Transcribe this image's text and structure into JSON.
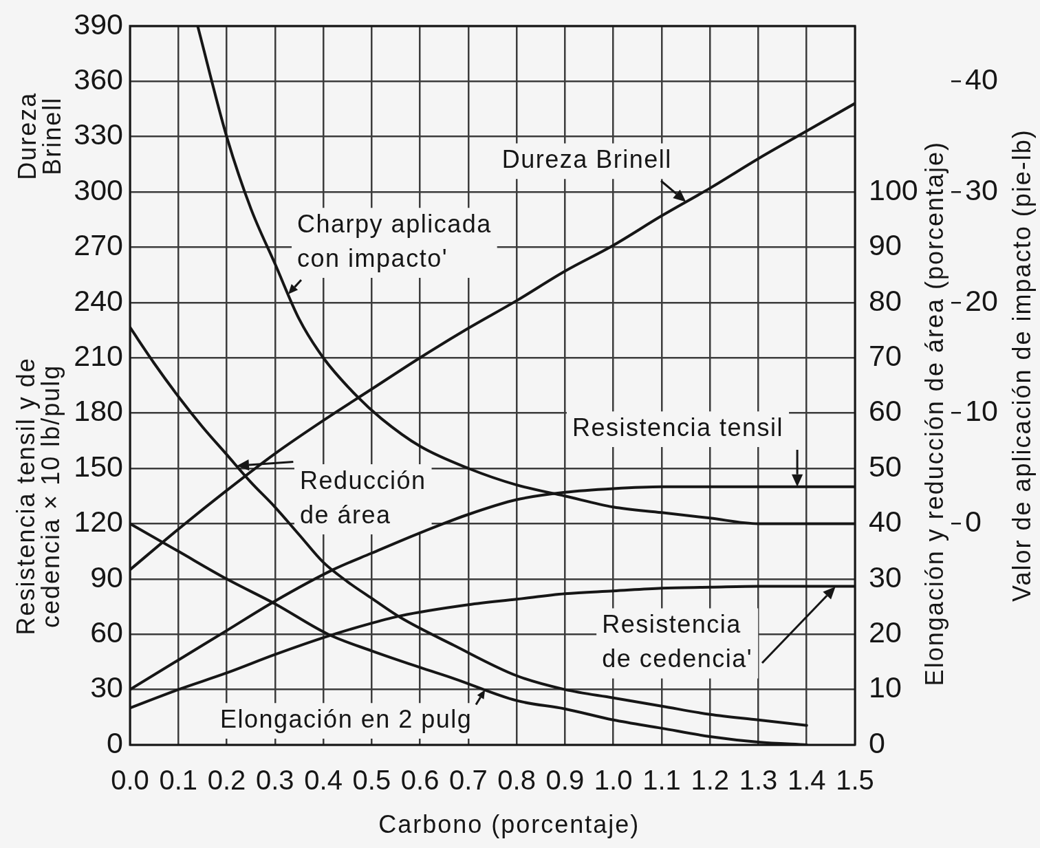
{
  "chart_data": {
    "type": "line",
    "xlabel": "Carbono (porcentaje)",
    "ylabel": "Resistencia tensil y de cedencia × 10 lb/pulg",
    "y2label": "Elongación y reducción de área (porcentaje)",
    "y3label": "Valor de aplicación de impacto (pie-lb)",
    "annotations": [
      "Dureza Brinell"
    ],
    "xlim": [
      0,
      1.5
    ],
    "xticks": [
      {
        "value": 0,
        "label": "0.0"
      },
      0.1,
      0.2,
      0.3,
      0.4,
      0.5,
      0.6,
      0.7,
      0.8,
      0.9,
      {
        "value": 1,
        "label": "1.0"
      },
      1.1,
      1.2,
      1.3,
      1.4,
      1.5
    ],
    "ylim": [
      0,
      390
    ],
    "yticks": [
      0,
      30,
      60,
      90,
      120,
      150,
      180,
      210,
      240,
      270,
      300,
      330,
      360,
      390
    ],
    "y2lim": [
      0,
      130
    ],
    "y2ticks": [
      0,
      10,
      20,
      30,
      40,
      50,
      60,
      70,
      80,
      90,
      100
    ],
    "y3lim": [
      -20,
      45
    ],
    "y3ticks": [
      0,
      10,
      20,
      30,
      40
    ],
    "grid": true,
    "series": [
      {
        "name": "Dureza Brinell",
        "color": "#161616",
        "x": [
          0,
          0.1,
          0.2,
          0.3,
          0.4,
          0.5,
          0.6,
          0.7,
          0.8,
          0.9,
          1.0,
          1.1,
          1.2,
          1.3,
          1.4,
          1.5
        ],
        "values": [
          95,
          117,
          138,
          158,
          176,
          193,
          210,
          226,
          241,
          257,
          271,
          287,
          302,
          318,
          333,
          348
        ]
      },
      {
        "name": "Charpy aplicada con impacto'",
        "color": "#161616",
        "axis": "y3",
        "x": [
          0.14,
          0.2,
          0.25,
          0.3,
          0.35,
          0.4,
          0.47,
          0.52,
          0.6,
          0.7,
          0.8,
          0.9,
          1.0,
          1.1,
          1.2,
          1.3,
          1.4,
          1.5
        ],
        "values": [
          45,
          35,
          28.5,
          23.5,
          18.5,
          15,
          11.5,
          9.5,
          7,
          5,
          3.5,
          2.5,
          1.5,
          1,
          0.5,
          0,
          0,
          0
        ]
      },
      {
        "name": "Reducción de área",
        "color": "#161616",
        "axis": "y2",
        "x": [
          0,
          0.05,
          0.1,
          0.15,
          0.2,
          0.25,
          0.3,
          0.35,
          0.4,
          0.45,
          0.5,
          0.56,
          0.67,
          0.8,
          0.9,
          1.0,
          1.1,
          1.2,
          1.3,
          1.4
        ],
        "values": [
          75.5,
          69,
          63,
          57.5,
          52.5,
          47.5,
          43,
          38,
          33,
          29.5,
          26.5,
          23,
          18,
          12.5,
          10,
          8.5,
          7,
          5.5,
          4.5,
          3.5
        ]
      },
      {
        "name": "Resistencia tensil",
        "color": "#161616",
        "x": [
          0,
          0.1,
          0.2,
          0.3,
          0.42,
          0.5,
          0.6,
          0.7,
          0.8,
          0.9,
          1.0,
          1.1,
          1.2,
          1.3,
          1.4,
          1.5
        ],
        "values": [
          30,
          46,
          62,
          78,
          95,
          104,
          115,
          125,
          133,
          137,
          139,
          140,
          140,
          140,
          140,
          140
        ]
      },
      {
        "name": "Resistencia de cedencia'",
        "color": "#161616",
        "x": [
          0,
          0.1,
          0.2,
          0.3,
          0.41,
          0.5,
          0.56,
          0.7,
          0.8,
          0.9,
          1.0,
          1.1,
          1.2,
          1.3,
          1.4,
          1.5
        ],
        "values": [
          20,
          30,
          39,
          49,
          59,
          66,
          70,
          76,
          79,
          82,
          83.5,
          85,
          85.5,
          86,
          86,
          86
        ]
      },
      {
        "name": "Elongación en 2 pulg",
        "color": "#161616",
        "axis": "y2",
        "x": [
          0,
          0.1,
          0.2,
          0.3,
          0.41,
          0.5,
          0.6,
          0.67,
          0.8,
          0.9,
          1.0,
          1.1,
          1.2,
          1.3,
          1.4
        ],
        "values": [
          40,
          35,
          30,
          25.5,
          20,
          17,
          14,
          12,
          8,
          6.5,
          4.5,
          3,
          1.5,
          0.5,
          0
        ]
      }
    ]
  }
}
